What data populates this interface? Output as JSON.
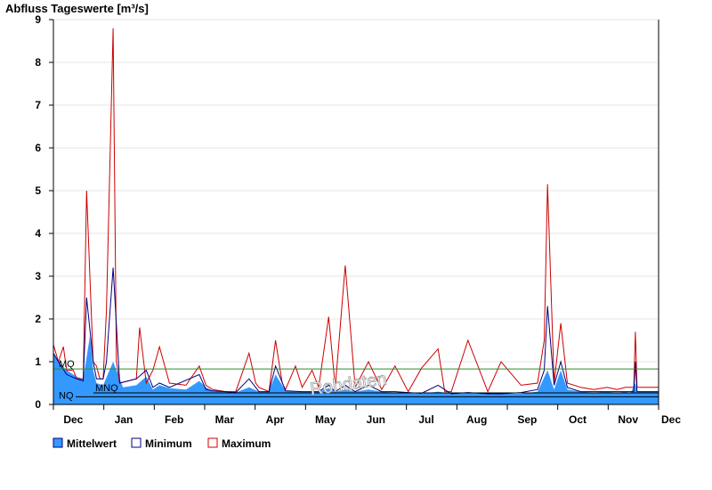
{
  "chart_data": {
    "type": "area",
    "title": "Abfluss Tageswerte [m³/s]",
    "ylim": [
      0,
      9
    ],
    "yticks": [
      0,
      1,
      2,
      3,
      4,
      5,
      6,
      7,
      8,
      9
    ],
    "xticks": [
      "Dec",
      "Jan",
      "Feb",
      "Mar",
      "Apr",
      "May",
      "Jun",
      "Jul",
      "Aug",
      "Sep",
      "Oct",
      "Nov",
      "Dec"
    ],
    "grid": "horizontal",
    "watermark": "Rohdaten",
    "reference_lines": [
      {
        "name": "MQ",
        "value": 0.83,
        "color": "#2e8b2e"
      },
      {
        "name": "MNQ",
        "value": 0.27,
        "color": "#000000"
      },
      {
        "name": "NQ",
        "value": 0.18,
        "color": "#000000"
      }
    ],
    "series": [
      {
        "name": "Mittelwert",
        "color": "#3399ff",
        "x": [
          0,
          3,
          8,
          14,
          18,
          22,
          24,
          26,
          30,
          36,
          42,
          50,
          56,
          60,
          64,
          70,
          80,
          88,
          92,
          96,
          104,
          110,
          118,
          124,
          130,
          134,
          140,
          150,
          160,
          166,
          170,
          176,
          182,
          190,
          198,
          206,
          214,
          222,
          232,
          240,
          250,
          262,
          270,
          282,
          292,
          298,
          302,
          306,
          310,
          318,
          326,
          334,
          340,
          345,
          348,
          351,
          352,
          365
        ],
        "values": [
          1.2,
          1.0,
          0.8,
          0.65,
          0.6,
          1.6,
          0.8,
          0.5,
          0.45,
          1.0,
          0.4,
          0.45,
          0.65,
          0.35,
          0.45,
          0.38,
          0.35,
          0.55,
          0.4,
          0.32,
          0.3,
          0.28,
          0.4,
          0.3,
          0.3,
          0.7,
          0.32,
          0.3,
          0.3,
          0.38,
          0.3,
          0.35,
          0.3,
          0.35,
          0.3,
          0.28,
          0.26,
          0.25,
          0.3,
          0.25,
          0.26,
          0.25,
          0.25,
          0.25,
          0.3,
          0.8,
          0.35,
          0.8,
          0.35,
          0.3,
          0.28,
          0.3,
          0.27,
          0.3,
          0.26,
          0.5,
          0.3,
          0.3
        ]
      },
      {
        "name": "Minimum",
        "color": "#000080",
        "x": [
          0,
          3,
          8,
          14,
          18,
          20,
          24,
          26,
          30,
          32,
          36,
          40,
          50,
          56,
          60,
          64,
          70,
          88,
          92,
          96,
          104,
          110,
          118,
          124,
          130,
          134,
          140,
          150,
          160,
          166,
          170,
          176,
          182,
          190,
          198,
          206,
          214,
          222,
          232,
          240,
          250,
          262,
          270,
          282,
          292,
          296,
          298,
          302,
          306,
          310,
          318,
          326,
          334,
          340,
          345,
          350,
          351,
          352,
          365
        ],
        "values": [
          1.2,
          1.0,
          0.7,
          0.6,
          0.55,
          2.5,
          1.0,
          0.6,
          0.6,
          1.0,
          3.2,
          0.5,
          0.6,
          0.8,
          0.4,
          0.5,
          0.4,
          0.7,
          0.35,
          0.32,
          0.3,
          0.28,
          0.6,
          0.3,
          0.3,
          0.9,
          0.32,
          0.3,
          0.3,
          0.45,
          0.3,
          0.45,
          0.3,
          0.45,
          0.3,
          0.3,
          0.28,
          0.26,
          0.45,
          0.25,
          0.28,
          0.25,
          0.25,
          0.28,
          0.35,
          0.8,
          2.3,
          0.45,
          1.0,
          0.4,
          0.3,
          0.3,
          0.3,
          0.3,
          0.3,
          0.3,
          1.0,
          0.3,
          0.3
        ]
      },
      {
        "name": "Maximum",
        "color": "#cc0000",
        "x": [
          0,
          3,
          6,
          8,
          12,
          14,
          18,
          20,
          24,
          26,
          28,
          30,
          32,
          36,
          38,
          40,
          50,
          52,
          56,
          60,
          64,
          70,
          80,
          88,
          92,
          96,
          104,
          110,
          118,
          122,
          124,
          130,
          134,
          138,
          140,
          146,
          150,
          156,
          160,
          166,
          170,
          176,
          182,
          190,
          198,
          206,
          214,
          222,
          232,
          236,
          240,
          250,
          262,
          270,
          282,
          292,
          296,
          298,
          302,
          306,
          310,
          318,
          326,
          334,
          340,
          345,
          350,
          351,
          352,
          365
        ],
        "values": [
          1.4,
          1.0,
          1.35,
          0.8,
          0.8,
          0.6,
          0.6,
          5.0,
          1.0,
          0.9,
          0.6,
          0.6,
          2.2,
          8.8,
          1.0,
          0.5,
          0.6,
          1.8,
          0.5,
          0.8,
          1.35,
          0.5,
          0.45,
          0.9,
          0.45,
          0.35,
          0.3,
          0.3,
          1.2,
          0.5,
          0.4,
          0.3,
          1.5,
          0.5,
          0.35,
          0.9,
          0.4,
          0.8,
          0.4,
          2.05,
          0.4,
          3.25,
          0.4,
          1.0,
          0.35,
          0.9,
          0.3,
          0.85,
          1.3,
          0.3,
          0.3,
          1.5,
          0.3,
          1.0,
          0.45,
          0.5,
          1.5,
          5.15,
          0.5,
          1.9,
          0.5,
          0.4,
          0.35,
          0.4,
          0.35,
          0.4,
          0.4,
          1.7,
          0.4,
          0.4
        ]
      }
    ]
  },
  "legend": [
    {
      "label": "Mittelwert",
      "fill": "#3399ff",
      "stroke": "#000080"
    },
    {
      "label": "Minimum",
      "fill": "#ffffff",
      "stroke": "#000080"
    },
    {
      "label": "Maximum",
      "fill": "#ffffff",
      "stroke": "#cc0000"
    }
  ]
}
